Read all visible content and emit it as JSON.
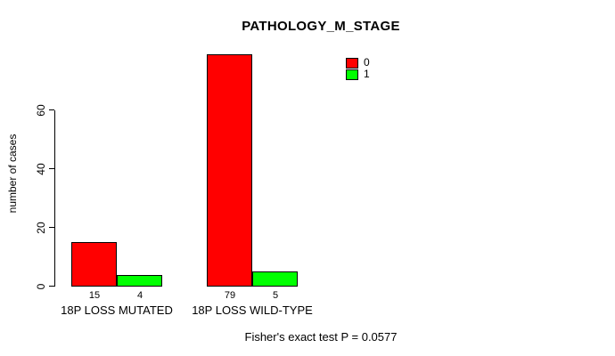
{
  "chart_data": {
    "type": "bar",
    "title": "PATHOLOGY_M_STAGE",
    "xlabel": "",
    "ylabel": "number of cases",
    "categories": [
      "18P LOSS MUTATED",
      "18P LOSS WILD-TYPE"
    ],
    "series": [
      {
        "name": "0",
        "color": "#ff0000",
        "values": [
          15,
          79
        ]
      },
      {
        "name": "1",
        "color": "#00ff00",
        "values": [
          4,
          5
        ]
      }
    ],
    "bar_value_labels": [
      [
        15,
        4
      ],
      [
        79,
        5
      ]
    ],
    "yticks": [
      0,
      20,
      40,
      60
    ],
    "ylim": [
      0,
      79
    ],
    "grid": false,
    "legend_position": "top-right",
    "legend_entries": [
      "0",
      "1"
    ],
    "annotation": "Fisher's exact test P = 0.0577",
    "colors": {
      "series0": "#ff0000",
      "series1": "#00ff00",
      "axis": "#000000",
      "background": "#ffffff"
    }
  }
}
